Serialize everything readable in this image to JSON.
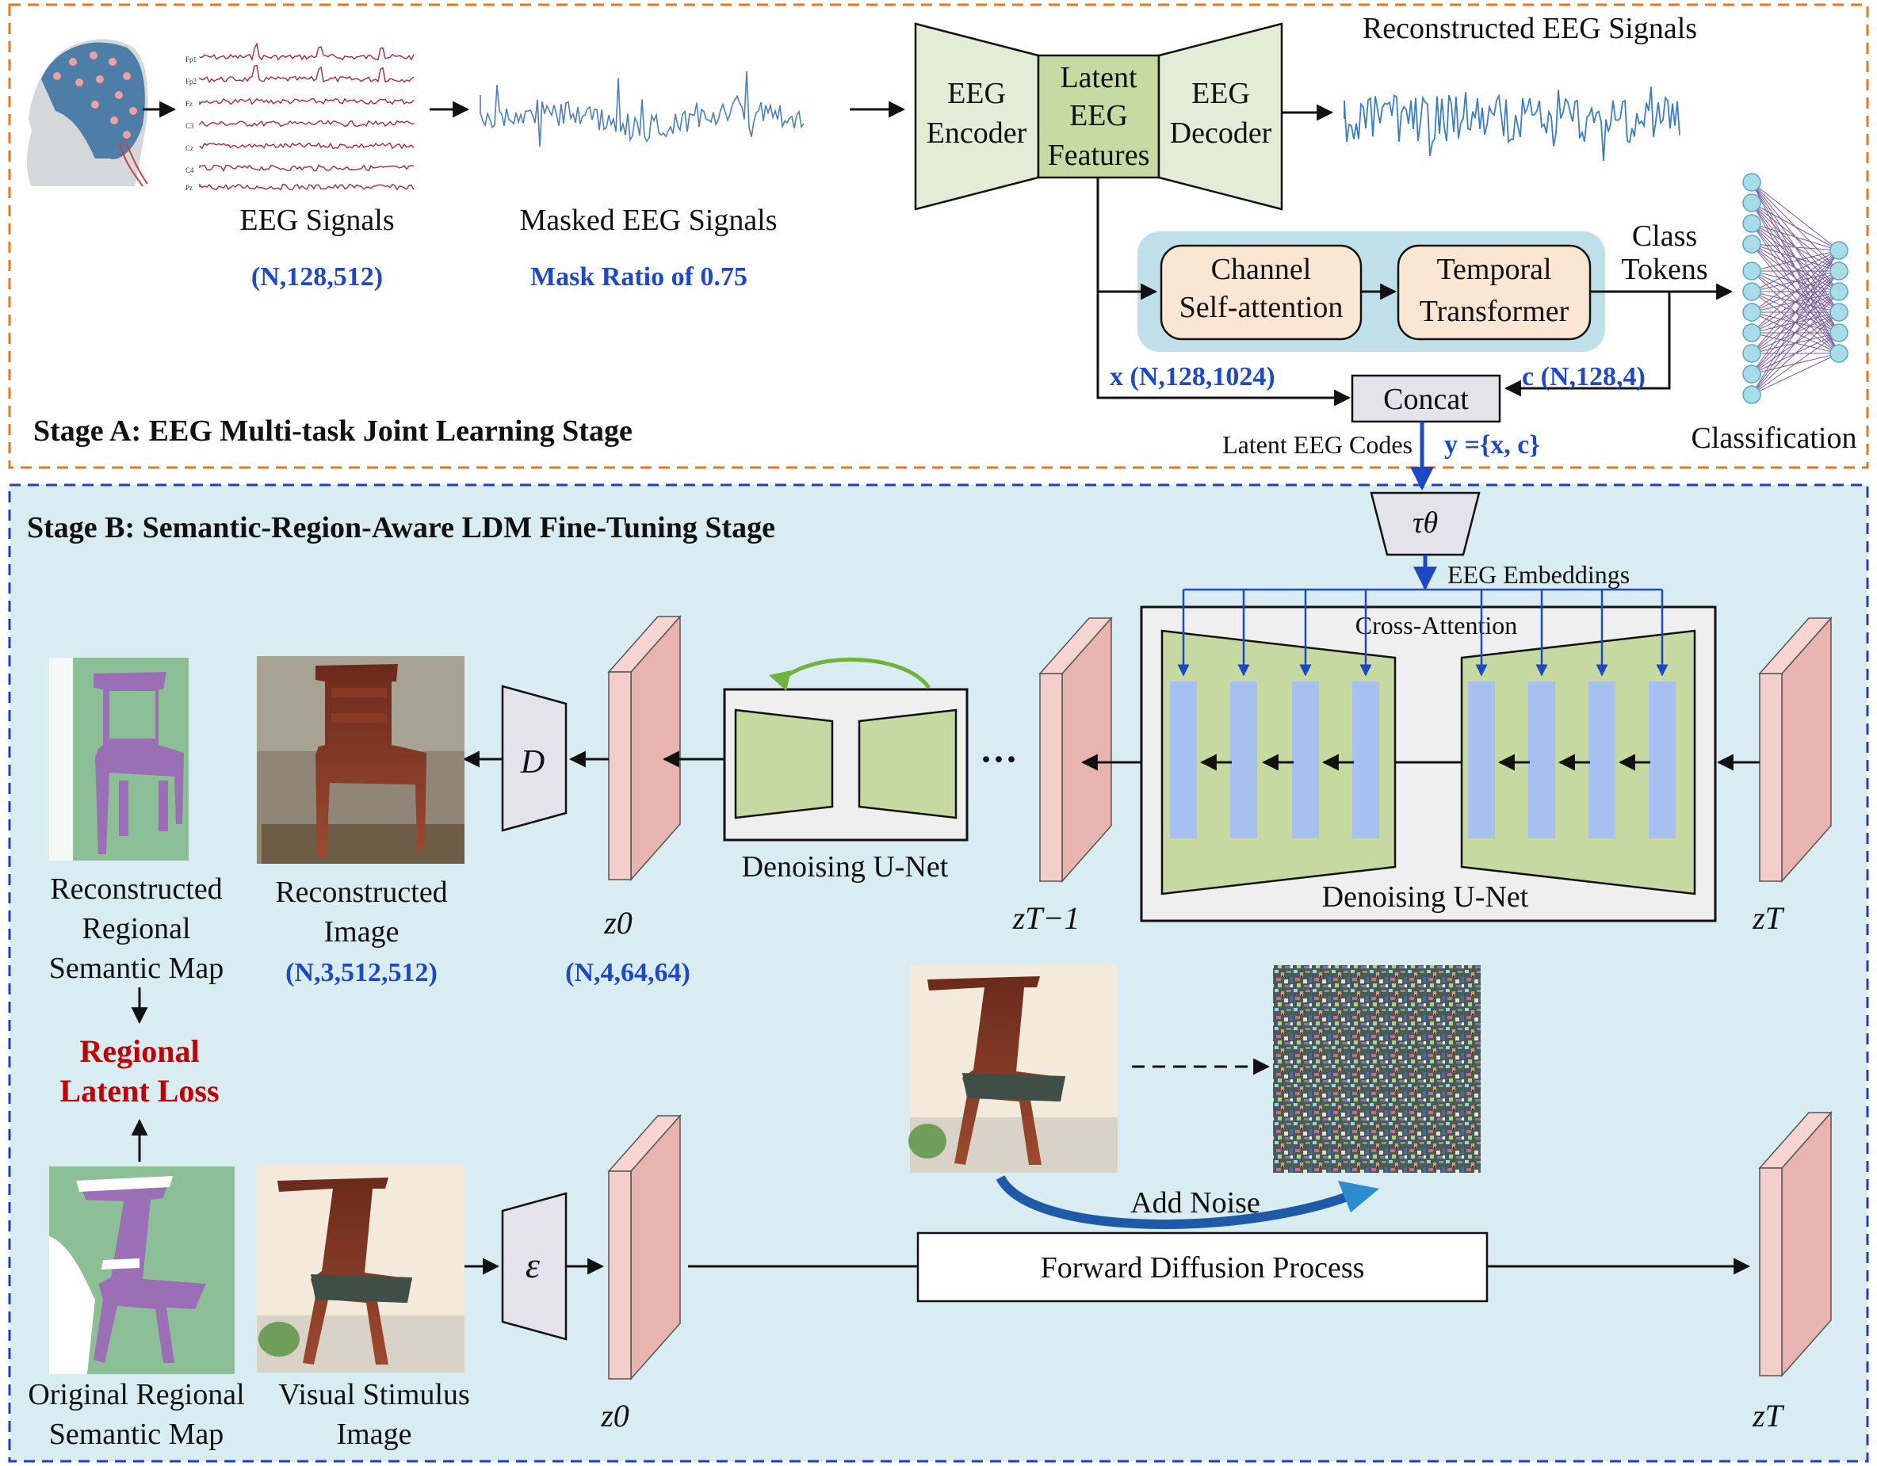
{
  "stage_a": {
    "title": "Stage A: EEG Multi-task Joint Learning Stage",
    "eeg_signals_label": "EEG Signals",
    "eeg_signals_shape": "(N,128,512)",
    "masked_signals_label": "Masked EEG Signals",
    "mask_ratio": "Mask Ratio of 0.75",
    "encoder": [
      "EEG",
      "Encoder"
    ],
    "latent": [
      "Latent",
      "EEG",
      "Features"
    ],
    "decoder": [
      "EEG",
      "Decoder"
    ],
    "reconstructed_signals_label": "Reconstructed EEG Signals",
    "channel_attention": [
      "Channel",
      "Self-attention"
    ],
    "temporal_transformer": [
      "Temporal",
      "Transformer"
    ],
    "class_tokens": [
      "Class",
      "Tokens"
    ],
    "classification": "Classification",
    "x_label": "x (N,128,1024)",
    "c_label": "c (N,128,4)",
    "concat": "Concat",
    "latent_codes": "Latent EEG Codes",
    "y_label": "y ={x, c}",
    "electrode_labels": [
      "Fp1",
      "Fp2",
      "Fz",
      "C3",
      "Cz",
      "C4",
      "Pz"
    ]
  },
  "stage_b": {
    "title": "Stage B: Semantic-Region-Aware LDM Fine-Tuning Stage",
    "tau": "τθ",
    "eeg_embeddings": "EEG Embeddings",
    "cross_attention": "Cross-Attention",
    "denoising_unet": "Denoising U-Net",
    "denoising_unet_small": "Denoising U-Net",
    "decoder_symbol": "D",
    "encoder_symbol": "ε",
    "ellipsis": "···",
    "z0_top": "z0",
    "z0_shape": "(N,4,64,64)",
    "zT_minus_1": "zT−1",
    "zT_top": "zT",
    "recon_map": [
      "Reconstructed",
      "Regional",
      "Semantic Map"
    ],
    "recon_image": [
      "Reconstructed",
      "Image"
    ],
    "recon_image_shape": "(N,3,512,512)",
    "regional_loss": [
      "Regional",
      "Latent Loss"
    ],
    "orig_map": [
      "Original Regional",
      "Semantic Map"
    ],
    "visual_stimulus": [
      "Visual Stimulus",
      "Image"
    ],
    "z0_bottom": "z0",
    "zT_bottom": "zT",
    "add_noise": "Add Noise",
    "forward_diffusion": "Forward Diffusion Process"
  },
  "colors": {
    "stage_a_border": "#e87722",
    "stage_b_border": "#1f3fbf",
    "stage_b_fill": "#d9ecf2",
    "encoder_fill": "#e3ecd6",
    "latent_fill": "#c6dba4",
    "unet_fill": "#c5d9a0",
    "attn_bar": "#a8c0f0",
    "latent_block": "#e8b4b0",
    "semantic_bg": "#8cbf96",
    "semantic_obj": "#9b6fb5",
    "title_blue": "#1f48c4",
    "loss_red": "#c00000"
  }
}
